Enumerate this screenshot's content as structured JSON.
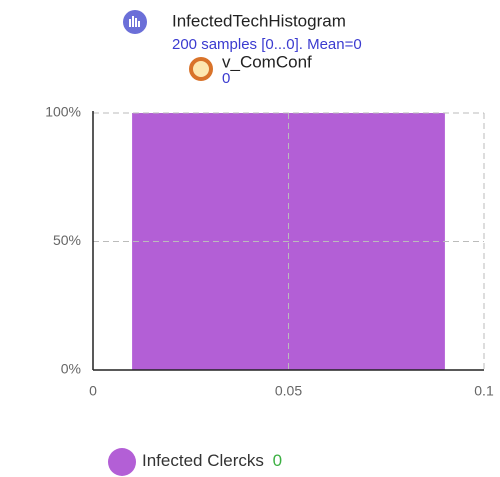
{
  "chart_data": {
    "type": "histogram",
    "title": "InfectedTechHistogram",
    "subtitle": "200 samples [0...0]. Mean=0",
    "variable": {
      "name": "v_ComConf",
      "value": 0
    },
    "bins": [
      0.01,
      0.09
    ],
    "series": [
      {
        "name": "Infected Clercks",
        "color": "#b35fd6",
        "values": [
          100
        ],
        "current_value": 0
      }
    ],
    "xlim": [
      0,
      0.1
    ],
    "xticks": [
      0,
      0.05,
      0.1
    ],
    "ylim": [
      0,
      100
    ],
    "yticks": [
      {
        "value": 0,
        "label": "0%"
      },
      {
        "value": 50,
        "label": "50%"
      },
      {
        "value": 100,
        "label": "100%"
      }
    ],
    "grid": true
  }
}
